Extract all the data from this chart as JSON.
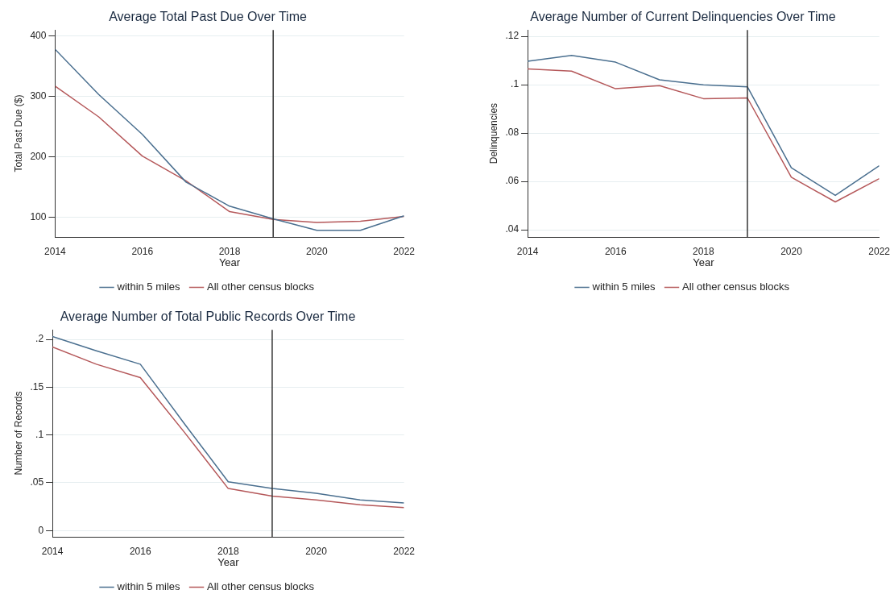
{
  "chart_data": [
    {
      "type": "line",
      "title": "Average Total Past Due Over Time",
      "xlabel": "Year",
      "ylabel": "Total Past Due ($)",
      "x": [
        2014,
        2015,
        2016,
        2017,
        2018,
        2019,
        2020,
        2021,
        2022
      ],
      "xlim": [
        2014,
        2022
      ],
      "xticks": [
        2014,
        2016,
        2018,
        2020,
        2022
      ],
      "ylim": [
        67,
        410
      ],
      "yticks": [
        100,
        200,
        300,
        400
      ],
      "grid": "y",
      "legend": "bottom",
      "marker": "none",
      "line_style": "solid",
      "series": [
        {
          "name": "within 5 miles",
          "color": "#4a6f8f",
          "values": [
            378,
            303,
            237,
            158,
            118,
            97,
            78,
            78,
            102
          ]
        },
        {
          "name": "All other census blocks",
          "color": "#b5585a",
          "values": [
            317,
            266,
            201,
            160,
            109,
            96,
            91,
            93,
            101
          ]
        }
      ],
      "ref_lines": [
        {
          "axis": "x",
          "value": 2019,
          "color": "#333333"
        }
      ]
    },
    {
      "type": "line",
      "title": "Average Number of Current Delinquencies Over Time",
      "xlabel": "Year",
      "ylabel": "Delinquencies",
      "x": [
        2014,
        2015,
        2016,
        2017,
        2018,
        2019,
        2020,
        2021,
        2022
      ],
      "xlim": [
        2014,
        2022
      ],
      "xticks": [
        2014,
        2016,
        2018,
        2020,
        2022
      ],
      "ylim": [
        0.037,
        0.1226
      ],
      "yticks": [
        {
          "value": 0.04,
          "label": ".04"
        },
        {
          "value": 0.06,
          "label": ".06"
        },
        {
          "value": 0.08,
          "label": ".08"
        },
        {
          "value": 0.1,
          "label": ".1"
        },
        {
          "value": 0.12,
          "label": ".12"
        }
      ],
      "grid": "y",
      "legend": "bottom",
      "marker": "none",
      "line_style": "solid",
      "series": [
        {
          "name": "within 5 miles",
          "color": "#4a6f8f",
          "values": [
            0.1097,
            0.1121,
            0.1093,
            0.102,
            0.0999,
            0.0991,
            0.0656,
            0.0542,
            0.0665
          ]
        },
        {
          "name": "All other census blocks",
          "color": "#b5585a",
          "values": [
            0.1065,
            0.1056,
            0.0983,
            0.0996,
            0.0942,
            0.0945,
            0.0617,
            0.0515,
            0.0611
          ]
        }
      ],
      "ref_lines": [
        {
          "axis": "x",
          "value": 2019,
          "color": "#333333"
        }
      ]
    },
    {
      "type": "line",
      "title": "Average Number of Total Public Records Over Time",
      "xlabel": "Year",
      "ylabel": "Number of Records",
      "x": [
        2014,
        2015,
        2016,
        2017,
        2018,
        2019,
        2020,
        2021,
        2022
      ],
      "xlim": [
        2014,
        2022
      ],
      "xticks": [
        2014,
        2016,
        2018,
        2020,
        2022
      ],
      "ylim": [
        -0.0065,
        0.21
      ],
      "yticks": [
        {
          "value": 0,
          "label": "0"
        },
        {
          "value": 0.05,
          "label": ".05"
        },
        {
          "value": 0.1,
          "label": ".1"
        },
        {
          "value": 0.15,
          "label": ".15"
        },
        {
          "value": 0.2,
          "label": ".2"
        }
      ],
      "grid": "y",
      "legend": "bottom",
      "marker": "none",
      "line_style": "solid",
      "series": [
        {
          "name": "within 5 miles",
          "color": "#4a6f8f",
          "values": [
            0.203,
            0.188,
            0.174,
            0.112,
            0.051,
            0.044,
            0.039,
            0.032,
            0.029
          ]
        },
        {
          "name": "All other census blocks",
          "color": "#b5585a",
          "values": [
            0.192,
            0.174,
            0.16,
            0.103,
            0.044,
            0.036,
            0.032,
            0.027,
            0.024
          ]
        }
      ],
      "ref_lines": [
        {
          "axis": "x",
          "value": 2019,
          "color": "#333333"
        }
      ]
    }
  ]
}
